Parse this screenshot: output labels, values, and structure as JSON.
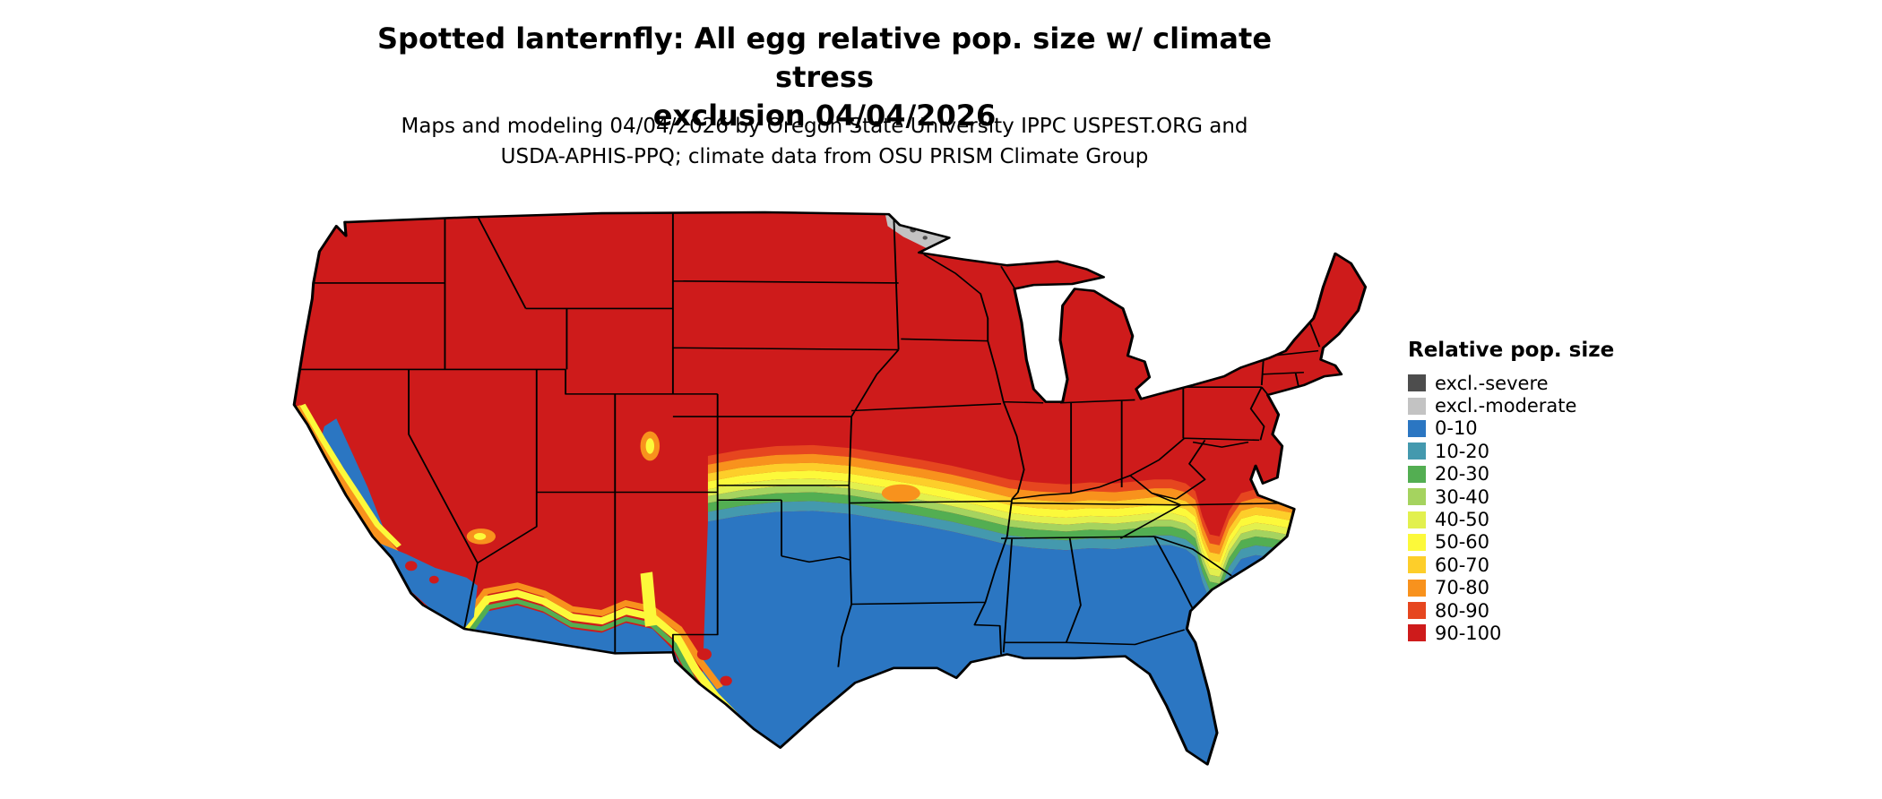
{
  "title": {
    "line1": "Spotted lanternfly: All egg relative pop. size w/ climate stress",
    "line2": "exclusion 04/04/2026"
  },
  "subtitle": {
    "line1": "Maps and modeling 04/04/2026 by Oregon State University IPPC USPEST.ORG and",
    "line2": "USDA-APHIS-PPQ; climate data from OSU PRISM Climate Group"
  },
  "legend": {
    "title": "Relative pop. size",
    "items": [
      {
        "label": "excl.-severe",
        "color": "#4D4D4D"
      },
      {
        "label": "excl.-moderate",
        "color": "#C3C3C3"
      },
      {
        "label": "0-10",
        "color": "#2B76C2"
      },
      {
        "label": "10-20",
        "color": "#4499AE"
      },
      {
        "label": "20-30",
        "color": "#53AE52"
      },
      {
        "label": "30-40",
        "color": "#A5D35F"
      },
      {
        "label": "40-50",
        "color": "#E2F04E"
      },
      {
        "label": "50-60",
        "color": "#FCF93A"
      },
      {
        "label": "60-70",
        "color": "#FDCE2A"
      },
      {
        "label": "70-80",
        "color": "#F8921D"
      },
      {
        "label": "80-90",
        "color": "#E6461F"
      },
      {
        "label": "90-100",
        "color": "#CE1B1B"
      }
    ]
  },
  "map": {
    "region": "Conterminous United States",
    "kind": "choropleth of relative population size with climate-stress exclusion"
  }
}
